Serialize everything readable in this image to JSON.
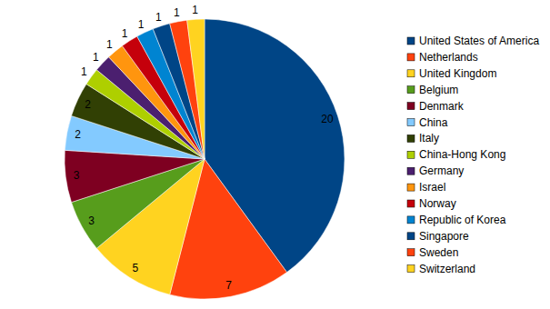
{
  "chart_data": {
    "type": "pie",
    "categories": [
      "United States of America",
      "Netherlands",
      "United Kingdom",
      "Belgium",
      "Denmark",
      "China",
      "Italy",
      "China-Hong Kong",
      "Germany",
      "Israel",
      "Norway",
      "Republic of Korea",
      "Singapore",
      "Sweden",
      "Switzerland"
    ],
    "values": [
      20,
      7,
      5,
      3,
      3,
      2,
      2,
      1,
      1,
      1,
      1,
      1,
      1,
      1,
      1
    ],
    "colors": [
      "#004586",
      "#ff420e",
      "#ffd320",
      "#579d1c",
      "#7e0021",
      "#83caff",
      "#314004",
      "#aecf00",
      "#4b1f6f",
      "#ff950e",
      "#c5000b",
      "#0084d1",
      "#004586",
      "#ff420e",
      "#ffd320"
    ],
    "data_labels": true,
    "legend": "right"
  }
}
